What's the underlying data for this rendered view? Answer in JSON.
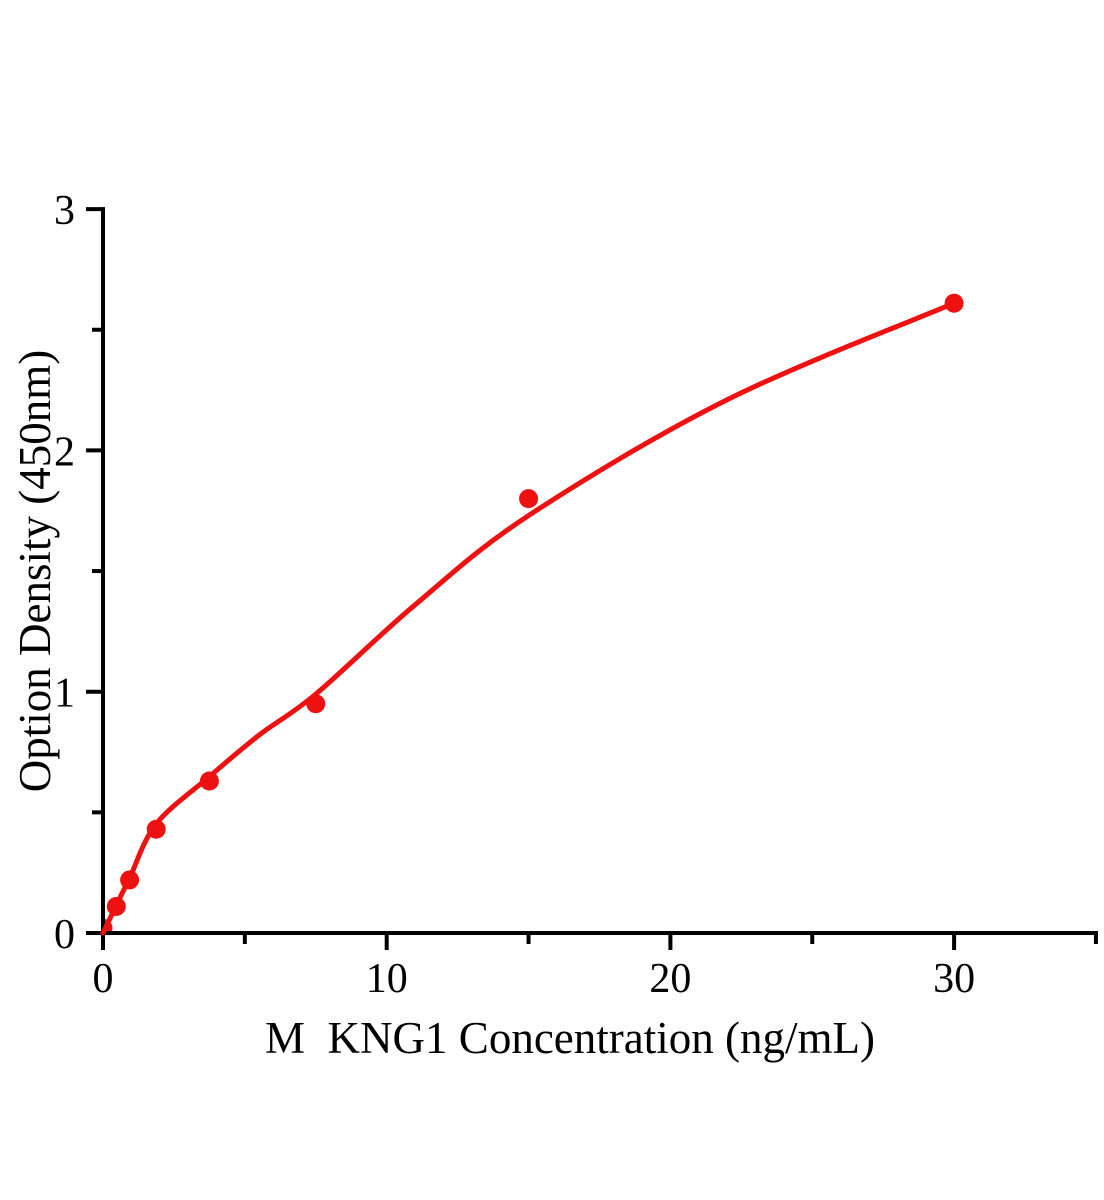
{
  "chart_data": {
    "type": "scatter",
    "title": "",
    "xlabel": "M  KNG1 Concentration (ng/mL)",
    "ylabel": "Option Density (450nm)",
    "xlim": [
      0,
      35
    ],
    "ylim": [
      0,
      3
    ],
    "x_major_ticks": [
      0,
      10,
      20,
      30
    ],
    "x_minor_ticks": [
      5,
      15,
      25,
      35
    ],
    "y_major_ticks": [
      0,
      1,
      2,
      3
    ],
    "y_minor_ticks": [
      0.5,
      1.5,
      2.5
    ],
    "grid": false,
    "legend": null,
    "points": [
      {
        "x": 0,
        "y": 0.02
      },
      {
        "x": 0.469,
        "y": 0.11
      },
      {
        "x": 0.938,
        "y": 0.22
      },
      {
        "x": 1.875,
        "y": 0.43
      },
      {
        "x": 3.75,
        "y": 0.63
      },
      {
        "x": 7.5,
        "y": 0.95
      },
      {
        "x": 15,
        "y": 1.8
      },
      {
        "x": 30,
        "y": 2.61
      }
    ],
    "fit_curve": [
      [
        0,
        0
      ],
      [
        0.469,
        0.115
      ],
      [
        0.938,
        0.228
      ],
      [
        1.875,
        0.452
      ],
      [
        3.75,
        0.648
      ],
      [
        5.5,
        0.82
      ],
      [
        7.5,
        0.99
      ],
      [
        11,
        1.36
      ],
      [
        15,
        1.73
      ],
      [
        22,
        2.21
      ],
      [
        30,
        2.61
      ]
    ],
    "colors": {
      "points": "#ee1111",
      "curve": "#ee1111",
      "axis": "#000000",
      "background": "#ffffff"
    }
  }
}
